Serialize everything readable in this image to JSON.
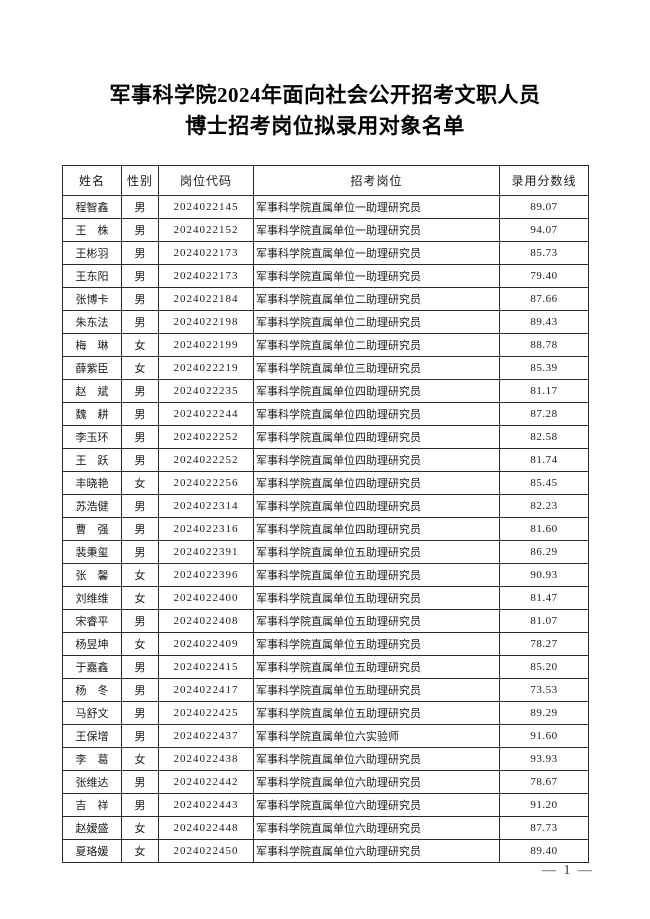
{
  "page": {
    "title_line1": "军事科学院2024年面向社会公开招考文职人员",
    "title_line2": "博士招考岗位拟录用对象名单",
    "footer_page_number": "— 1 —"
  },
  "table": {
    "headers": [
      "姓名",
      "性别",
      "岗位代码",
      "招考岗位",
      "录用分数线"
    ],
    "rows": [
      [
        "程智鑫",
        "男",
        "2024022145",
        "军事科学院直属单位一助理研究员",
        "89.07"
      ],
      [
        "王　株",
        "男",
        "2024022152",
        "军事科学院直属单位一助理研究员",
        "94.07"
      ],
      [
        "王彬羽",
        "男",
        "2024022173",
        "军事科学院直属单位一助理研究员",
        "85.73"
      ],
      [
        "王东阳",
        "男",
        "2024022173",
        "军事科学院直属单位一助理研究员",
        "79.40"
      ],
      [
        "张博卡",
        "男",
        "2024022184",
        "军事科学院直属单位二助理研究员",
        "87.66"
      ],
      [
        "朱东法",
        "男",
        "2024022198",
        "军事科学院直属单位二助理研究员",
        "89.43"
      ],
      [
        "梅　琳",
        "女",
        "2024022199",
        "军事科学院直属单位二助理研究员",
        "88.78"
      ],
      [
        "薛紫臣",
        "女",
        "2024022219",
        "军事科学院直属单位三助理研究员",
        "85.39"
      ],
      [
        "赵　斌",
        "男",
        "2024022235",
        "军事科学院直属单位四助理研究员",
        "81.17"
      ],
      [
        "魏　耕",
        "男",
        "2024022244",
        "军事科学院直属单位四助理研究员",
        "87.28"
      ],
      [
        "李玉环",
        "男",
        "2024022252",
        "军事科学院直属单位四助理研究员",
        "82.58"
      ],
      [
        "王　跃",
        "男",
        "2024022252",
        "军事科学院直属单位四助理研究员",
        "81.74"
      ],
      [
        "丰晓艳",
        "女",
        "2024022256",
        "军事科学院直属单位四助理研究员",
        "85.45"
      ],
      [
        "苏浩健",
        "男",
        "2024022314",
        "军事科学院直属单位四助理研究员",
        "82.23"
      ],
      [
        "曹　强",
        "男",
        "2024022316",
        "军事科学院直属单位四助理研究员",
        "81.60"
      ],
      [
        "裴秉玺",
        "男",
        "2024022391",
        "军事科学院直属单位五助理研究员",
        "86.29"
      ],
      [
        "张　馨",
        "女",
        "2024022396",
        "军事科学院直属单位五助理研究员",
        "90.93"
      ],
      [
        "刘维维",
        "女",
        "2024022400",
        "军事科学院直属单位五助理研究员",
        "81.47"
      ],
      [
        "宋睿平",
        "男",
        "2024022408",
        "军事科学院直属单位五助理研究员",
        "81.07"
      ],
      [
        "杨昱坤",
        "女",
        "2024022409",
        "军事科学院直属单位五助理研究员",
        "78.27"
      ],
      [
        "于嘉鑫",
        "男",
        "2024022415",
        "军事科学院直属单位五助理研究员",
        "85.20"
      ],
      [
        "杨　冬",
        "男",
        "2024022417",
        "军事科学院直属单位五助理研究员",
        "73.53"
      ],
      [
        "马舒文",
        "男",
        "2024022425",
        "军事科学院直属单位五助理研究员",
        "89.29"
      ],
      [
        "王保增",
        "男",
        "2024022437",
        "军事科学院直属单位六实验师",
        "91.60"
      ],
      [
        "李　葛",
        "女",
        "2024022438",
        "军事科学院直属单位六助理研究员",
        "93.93"
      ],
      [
        "张维达",
        "男",
        "2024022442",
        "军事科学院直属单位六助理研究员",
        "78.67"
      ],
      [
        "吉　祥",
        "男",
        "2024022443",
        "军事科学院直属单位六助理研究员",
        "91.20"
      ],
      [
        "赵嫒盛",
        "女",
        "2024022448",
        "军事科学院直属单位六助理研究员",
        "87.73"
      ],
      [
        "夏珞媛",
        "女",
        "2024022450",
        "军事科学院直属单位六助理研究员",
        "89.40"
      ]
    ],
    "column_names": [
      "name",
      "gender",
      "position-code",
      "recruit-position",
      "score-cutoff"
    ]
  }
}
